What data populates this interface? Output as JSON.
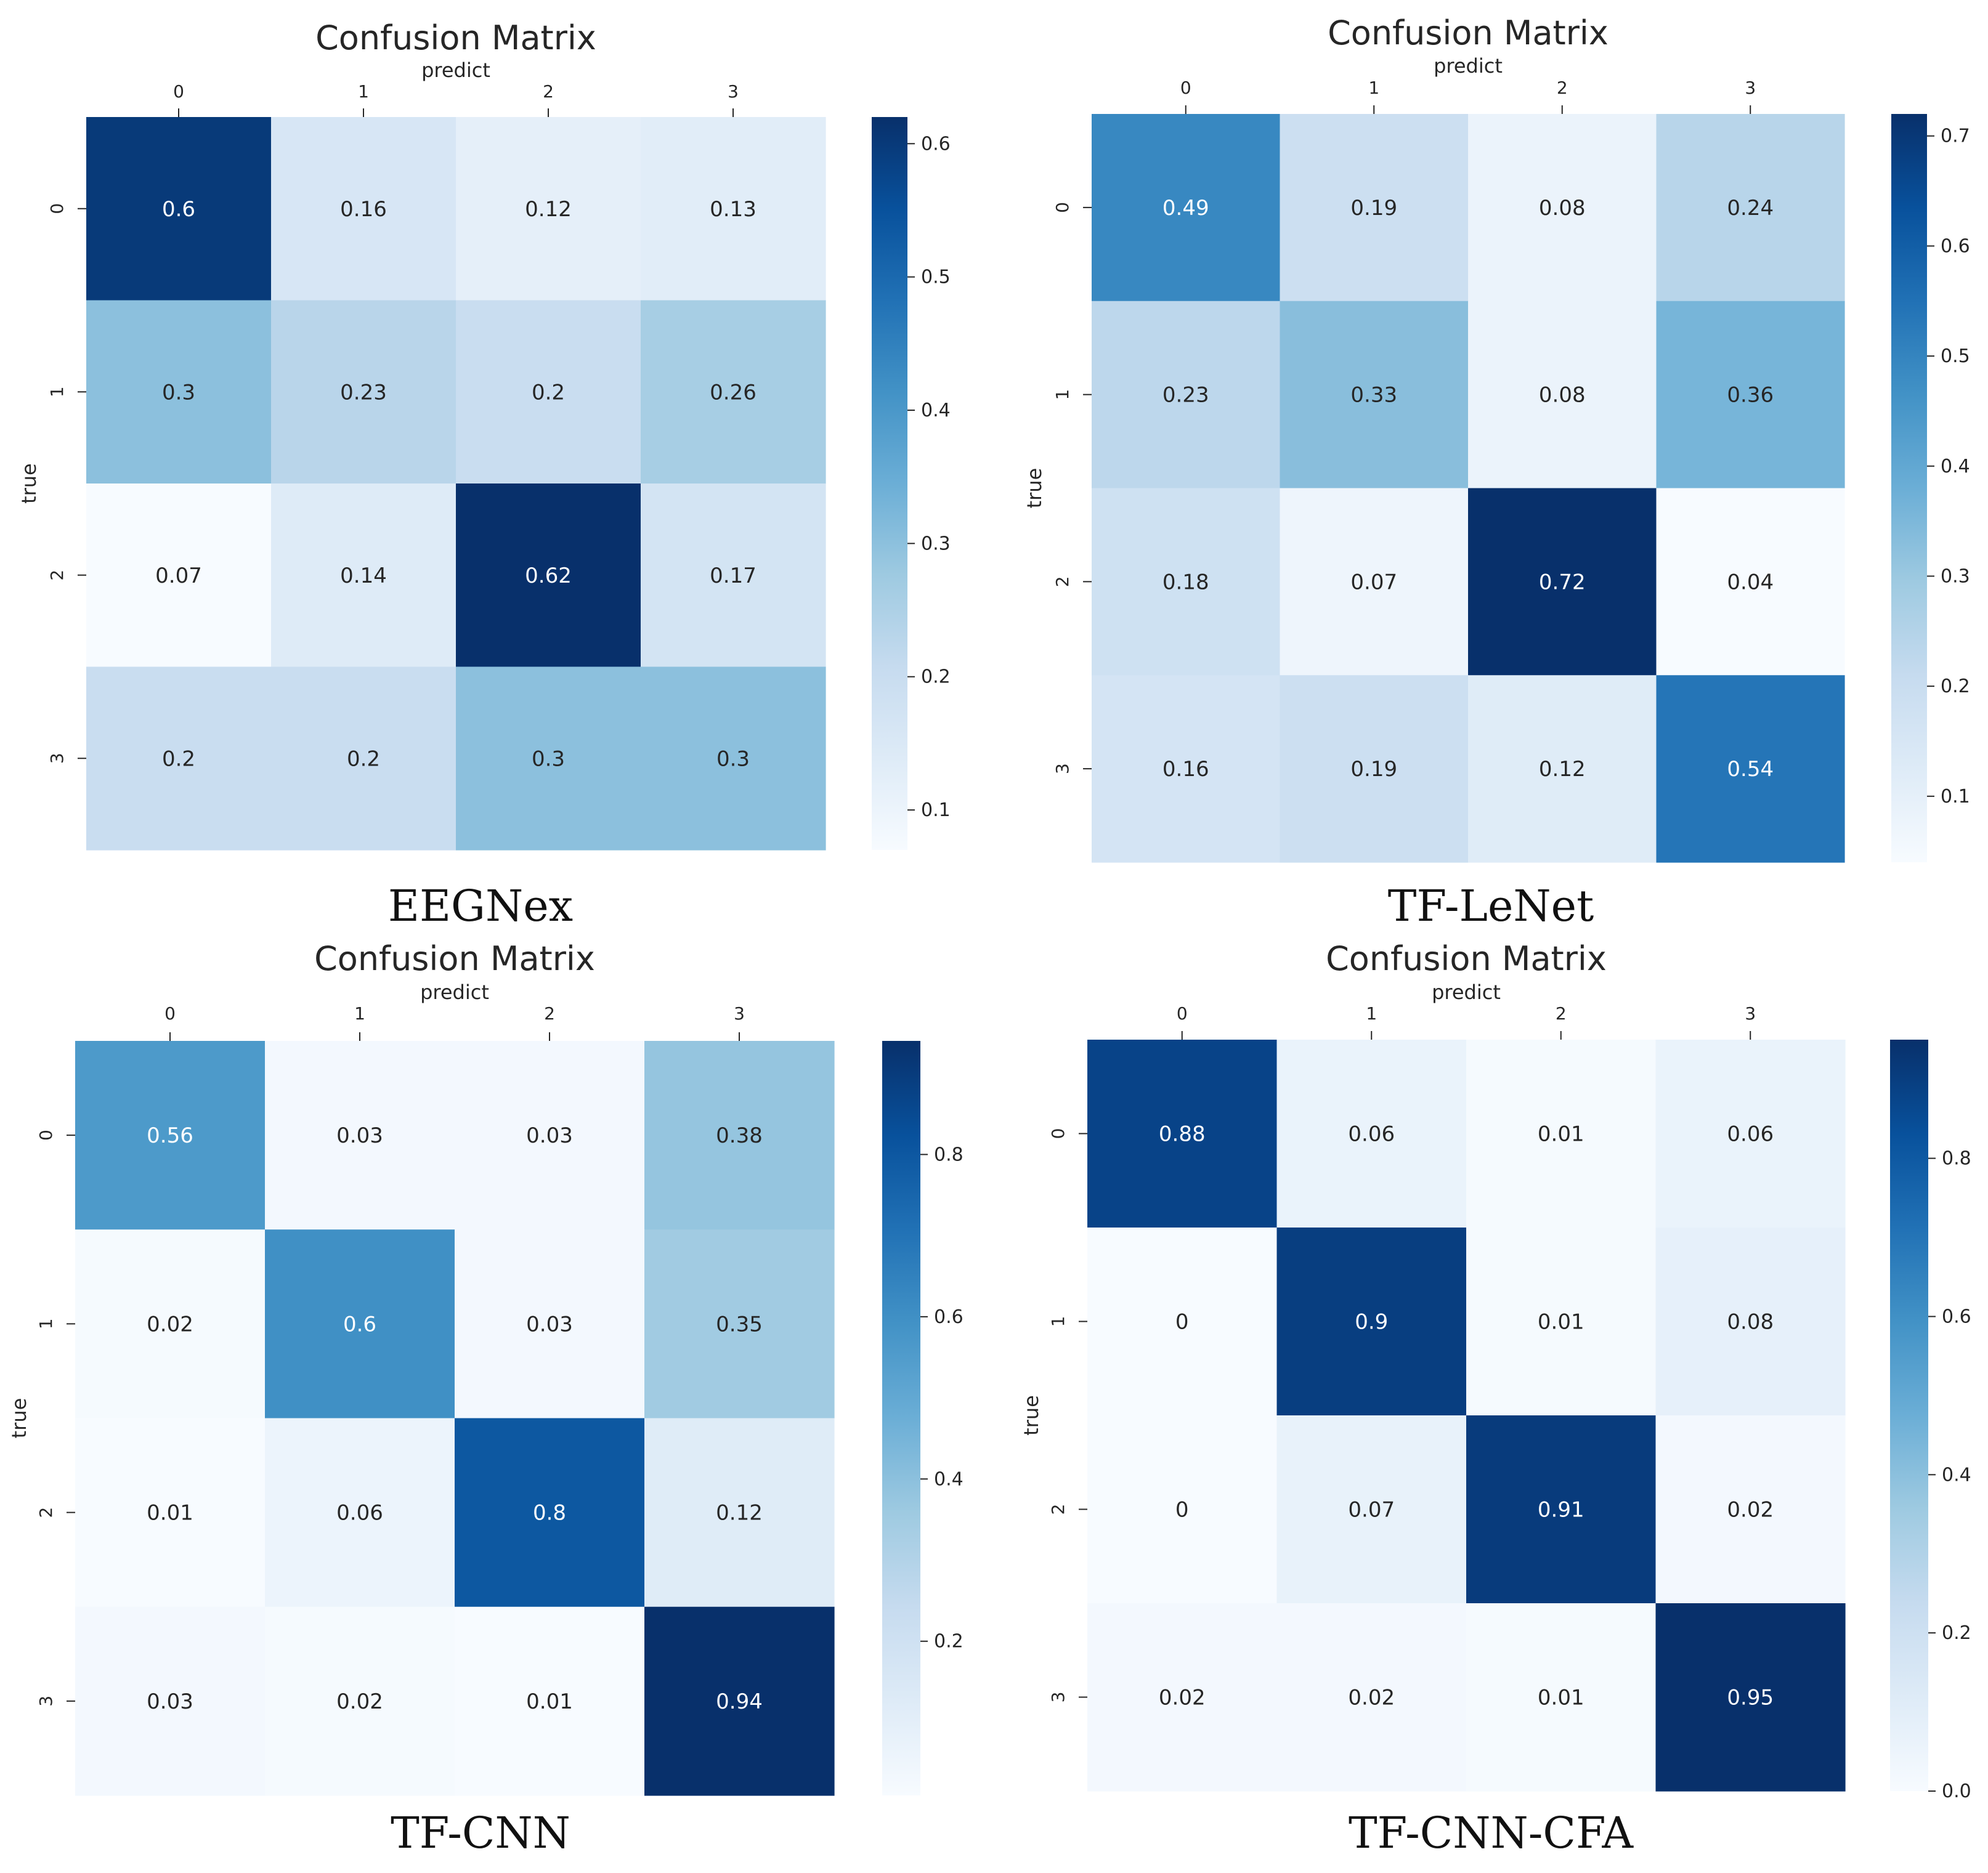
{
  "chart_data": [
    {
      "type": "heatmap",
      "title": "Confusion Matrix",
      "xlabel": "predict",
      "ylabel": "true",
      "caption": "EEGNex",
      "x_categories": [
        "0",
        "1",
        "2",
        "3"
      ],
      "y_categories": [
        "0",
        "1",
        "2",
        "3"
      ],
      "values": [
        [
          0.6,
          0.16,
          0.12,
          0.13
        ],
        [
          0.3,
          0.23,
          0.2,
          0.26
        ],
        [
          0.07,
          0.14,
          0.62,
          0.17
        ],
        [
          0.2,
          0.2,
          0.3,
          0.3
        ]
      ],
      "labels": [
        [
          "0.6",
          "0.16",
          "0.12",
          "0.13"
        ],
        [
          "0.3",
          "0.23",
          "0.2",
          "0.26"
        ],
        [
          "0.07",
          "0.14",
          "0.62",
          "0.17"
        ],
        [
          "0.2",
          "0.2",
          "0.3",
          "0.3"
        ]
      ],
      "colorbar": {
        "min": 0.07,
        "max": 0.62,
        "ticks": [
          "0.1",
          "0.2",
          "0.3",
          "0.4",
          "0.5",
          "0.6"
        ]
      },
      "colormap": "Blues"
    },
    {
      "type": "heatmap",
      "title": "Confusion Matrix",
      "xlabel": "predict",
      "ylabel": "true",
      "caption": "TF-LeNet",
      "x_categories": [
        "0",
        "1",
        "2",
        "3"
      ],
      "y_categories": [
        "0",
        "1",
        "2",
        "3"
      ],
      "values": [
        [
          0.49,
          0.19,
          0.08,
          0.24
        ],
        [
          0.23,
          0.33,
          0.08,
          0.36
        ],
        [
          0.18,
          0.07,
          0.72,
          0.04
        ],
        [
          0.16,
          0.19,
          0.12,
          0.54
        ]
      ],
      "labels": [
        [
          "0.49",
          "0.19",
          "0.08",
          "0.24"
        ],
        [
          "0.23",
          "0.33",
          "0.08",
          "0.36"
        ],
        [
          "0.18",
          "0.07",
          "0.72",
          "0.04"
        ],
        [
          "0.16",
          "0.19",
          "0.12",
          "0.54"
        ]
      ],
      "colorbar": {
        "min": 0.04,
        "max": 0.72,
        "ticks": [
          "0.1",
          "0.2",
          "0.3",
          "0.4",
          "0.5",
          "0.6",
          "0.7"
        ]
      },
      "colormap": "Blues"
    },
    {
      "type": "heatmap",
      "title": "Confusion Matrix",
      "xlabel": "predict",
      "ylabel": "true",
      "caption": "TF-CNN",
      "x_categories": [
        "0",
        "1",
        "2",
        "3"
      ],
      "y_categories": [
        "0",
        "1",
        "2",
        "3"
      ],
      "values": [
        [
          0.56,
          0.03,
          0.03,
          0.38
        ],
        [
          0.02,
          0.6,
          0.03,
          0.35
        ],
        [
          0.01,
          0.06,
          0.8,
          0.12
        ],
        [
          0.03,
          0.02,
          0.01,
          0.94
        ]
      ],
      "labels": [
        [
          "0.56",
          "0.03",
          "0.03",
          "0.38"
        ],
        [
          "0.02",
          "0.6",
          "0.03",
          "0.35"
        ],
        [
          "0.01",
          "0.06",
          "0.8",
          "0.12"
        ],
        [
          "0.03",
          "0.02",
          "0.01",
          "0.94"
        ]
      ],
      "colorbar": {
        "min": 0.01,
        "max": 0.94,
        "ticks": [
          "0.2",
          "0.4",
          "0.6",
          "0.8"
        ]
      },
      "colormap": "Blues"
    },
    {
      "type": "heatmap",
      "title": "Confusion Matrix",
      "xlabel": "predict",
      "ylabel": "true",
      "caption": "TF-CNN-CFA",
      "x_categories": [
        "0",
        "1",
        "2",
        "3"
      ],
      "y_categories": [
        "0",
        "1",
        "2",
        "3"
      ],
      "values": [
        [
          0.88,
          0.06,
          0.01,
          0.06
        ],
        [
          0,
          0.9,
          0.01,
          0.08
        ],
        [
          0,
          0.07,
          0.91,
          0.02
        ],
        [
          0.02,
          0.02,
          0.01,
          0.95
        ]
      ],
      "labels": [
        [
          "0.88",
          "0.06",
          "0.01",
          "0.06"
        ],
        [
          "0",
          "0.9",
          "0.01",
          "0.08"
        ],
        [
          "0",
          "0.07",
          "0.91",
          "0.02"
        ],
        [
          "0.02",
          "0.02",
          "0.01",
          "0.95"
        ]
      ],
      "colorbar": {
        "min": 0.0,
        "max": 0.95,
        "ticks": [
          "0.0",
          "0.2",
          "0.4",
          "0.6",
          "0.8"
        ]
      },
      "colormap": "Blues"
    }
  ]
}
